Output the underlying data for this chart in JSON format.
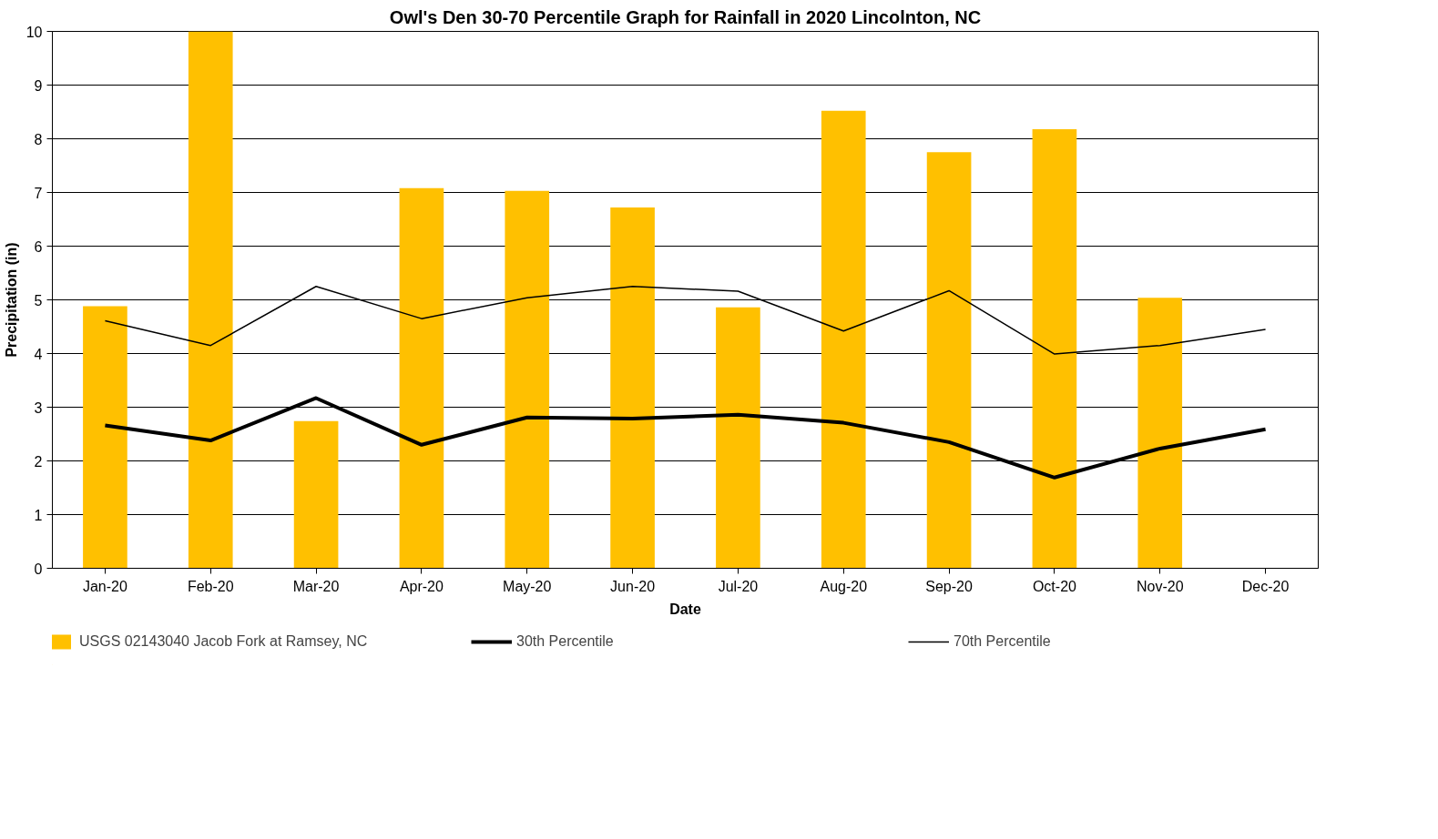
{
  "chart_data": {
    "type": "bar",
    "title": "Owl's Den 30-70 Percentile Graph for Rainfall in 2020 Lincolnton, NC",
    "xlabel": "Date",
    "ylabel": "Precipitation (in)",
    "categories": [
      "Jan-20",
      "Feb-20",
      "Mar-20",
      "Apr-20",
      "May-20",
      "Jun-20",
      "Jul-20",
      "Aug-20",
      "Sep-20",
      "Oct-20",
      "Nov-20",
      "Dec-20"
    ],
    "series": [
      {
        "name": "USGS 02143040 Jacob Fork at Ramsey, NC",
        "color": "#ffc000",
        "values": [
          4.88,
          10,
          2.74,
          7.08,
          7.03,
          6.72,
          4.86,
          8.52,
          7.75,
          8.18,
          5.04,
          null
        ]
      },
      {
        "name": "30th Percentile",
        "type": "line",
        "color": "#000000",
        "values": [
          2.66,
          2.38,
          3.17,
          2.3,
          2.81,
          2.79,
          2.86,
          2.71,
          2.35,
          1.69,
          2.23,
          2.59
        ]
      },
      {
        "name": "70th Percentile",
        "type": "line",
        "color": "#000000",
        "values": [
          4.61,
          4.15,
          5.25,
          4.65,
          5.04,
          5.25,
          5.16,
          4.42,
          5.17,
          3.99,
          4.15,
          4.45
        ]
      }
    ],
    "ylim": [
      0,
      10
    ],
    "yticks": [
      0,
      1,
      2,
      3,
      4,
      5,
      6,
      7,
      8,
      9,
      10
    ],
    "grid": "y",
    "legend": "bottom",
    "marker": "none",
    "line_style": "solid"
  }
}
